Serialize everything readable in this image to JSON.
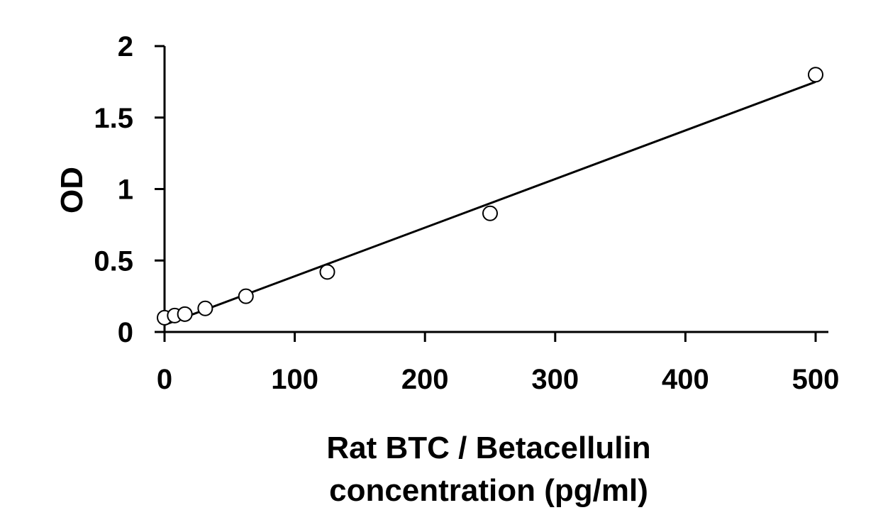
{
  "chart_data": {
    "type": "scatter",
    "title": "",
    "xlabel_lines": [
      "Rat BTC / Betacellulin",
      "concentration (pg/ml)"
    ],
    "ylabel": "OD",
    "xlim": [
      0,
      500
    ],
    "ylim": [
      0,
      2
    ],
    "x_ticks": [
      0,
      100,
      200,
      300,
      400,
      500
    ],
    "y_ticks": [
      0,
      0.5,
      1,
      1.5,
      2
    ],
    "x_tick_labels": [
      "0",
      "100",
      "200",
      "300",
      "400",
      "500"
    ],
    "y_tick_labels": [
      "0",
      "0.5",
      "1",
      "1.5",
      "2"
    ],
    "grid": false,
    "legend": "none",
    "series": [
      {
        "marker": "open-circle",
        "color": "#000000",
        "points": [
          {
            "x": 0,
            "y": 0.1
          },
          {
            "x": 7.8,
            "y": 0.115
          },
          {
            "x": 15.6,
            "y": 0.125
          },
          {
            "x": 31.25,
            "y": 0.165
          },
          {
            "x": 62.5,
            "y": 0.25
          },
          {
            "x": 125,
            "y": 0.42
          },
          {
            "x": 250,
            "y": 0.83
          },
          {
            "x": 500,
            "y": 1.8
          }
        ]
      }
    ],
    "trendline": {
      "type": "linear",
      "color": "#000000",
      "points": [
        {
          "x": 0,
          "y": 0.05
        },
        {
          "x": 500,
          "y": 1.75
        }
      ]
    }
  }
}
